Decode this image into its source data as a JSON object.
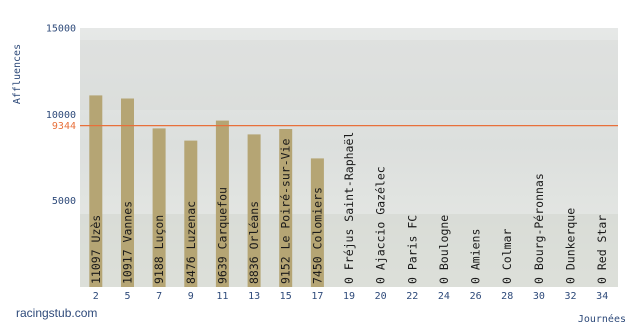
{
  "chart_data": {
    "type": "bar",
    "ylabel": "Affluences",
    "xlabel": "Journées",
    "ylim": [
      0,
      15000
    ],
    "yticks": [
      "5000",
      "10000",
      "15000"
    ],
    "categories": [
      "2",
      "5",
      "7",
      "9",
      "11",
      "13",
      "15",
      "17",
      "19",
      "20",
      "22",
      "24",
      "26",
      "28",
      "30",
      "32",
      "34"
    ],
    "values": [
      11097,
      10917,
      9188,
      8476,
      9639,
      8836,
      9152,
      7450,
      0,
      0,
      0,
      0,
      0,
      0,
      0,
      0,
      0
    ],
    "bar_labels": [
      "11097 Uzès",
      "10917 Vannes",
      "9188 Luçon",
      "8476 Luzenac",
      "9639 Carquefou",
      "8836 Orléans",
      "9152 Le Poiré-sur-Vie",
      "7450 Colomiers",
      "0 Fréjus Saint-Raphaël",
      "0 Ajaccio Gazélec",
      "0 Paris FC",
      "0 Boulogne",
      "0 Amiens",
      "0 Colmar",
      "0 Bourg-Péronnas",
      "0 Dunkerque",
      "0 Red Star"
    ],
    "reference_line": {
      "value": 9344,
      "label": "9344",
      "color": "#e8703a"
    },
    "bar_color": "#b5a574",
    "grid": false
  },
  "watermark": "racingstub.com"
}
